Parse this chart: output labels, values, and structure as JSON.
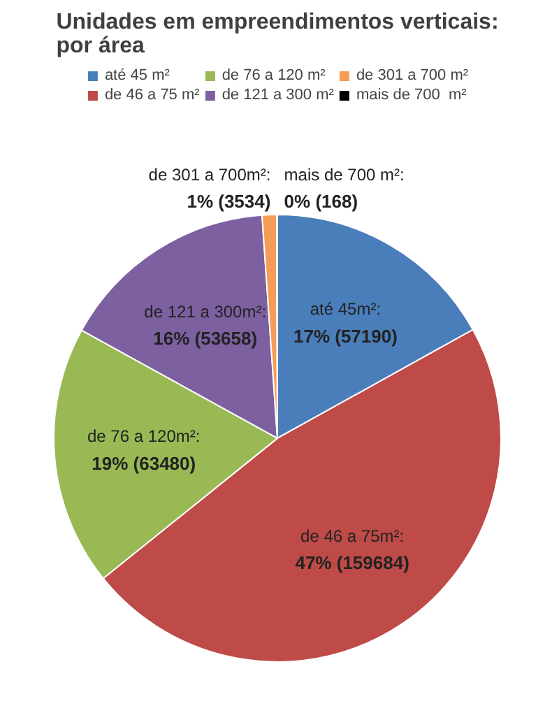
{
  "chart_data": {
    "type": "pie",
    "title": "Unidades em empreendimentos verticais:\npor área",
    "categories": [
      "até 45 m²",
      "de 46 a 75 m²",
      "de 76 a 120 m²",
      "de 121 a 300 m²",
      "de 301 a 700 m²",
      "mais de 700  m²"
    ],
    "values": [
      57190,
      159684,
      63480,
      53658,
      3534,
      168
    ],
    "colors": [
      "#4a7ebb",
      "#be4b48",
      "#98b954",
      "#7d60a0",
      "#f59d56",
      "#000000"
    ],
    "value_labels": [
      "até 45m²:\n17% (57190)",
      "de 46 a 75m²:\n47% (159684)",
      "de 76 a 120m²:\n19% (63480)",
      "de 121 a 300m²:\n16% (53658)",
      "de 301 a 700m²:\n1% (3534)",
      "mais de 700 m²:\n0% (168)"
    ],
    "legend": "top"
  }
}
